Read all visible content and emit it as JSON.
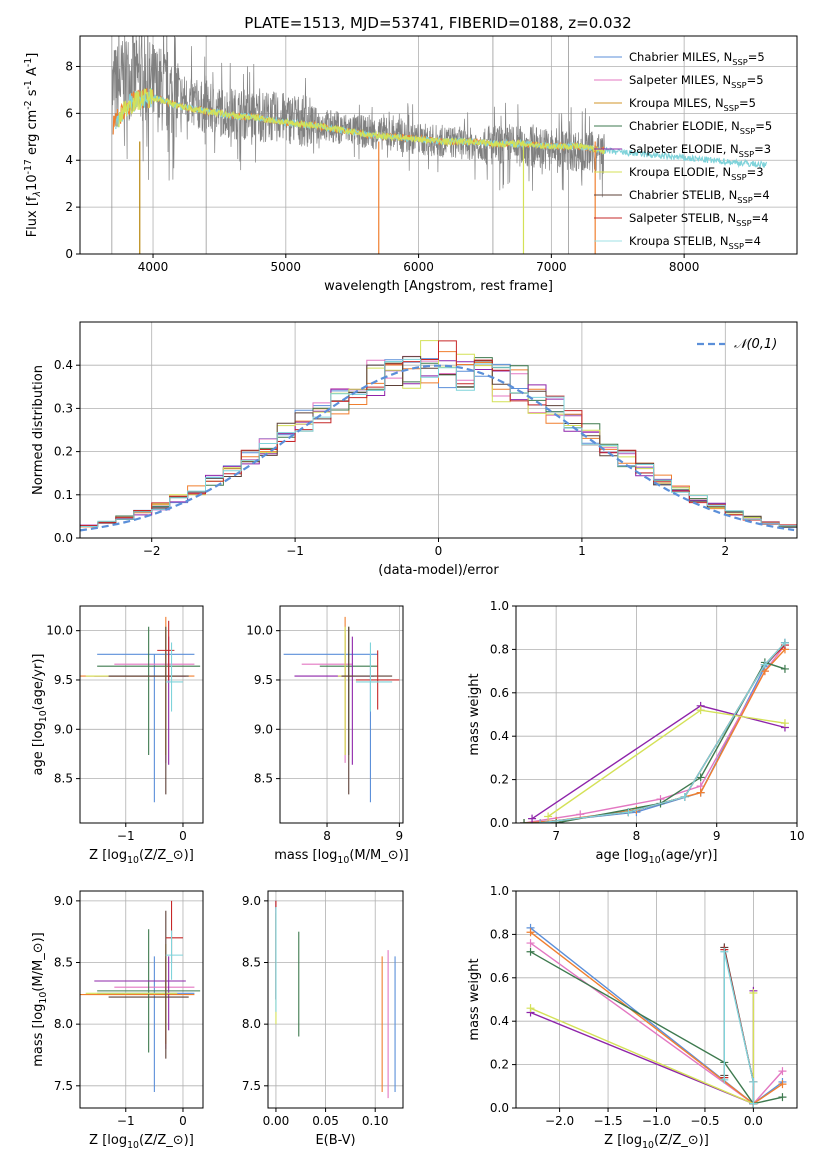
{
  "title": "PLATE=1513, MJD=53741, FIBERID=0188, z=0.032",
  "models": [
    {
      "name": "Chabrier MILES, N$_{SSP}$=5",
      "color": "#4c72b0"
    },
    {
      "name": "Salpeter MILES, N$_{SSP}$=5",
      "color": "#e377c2"
    },
    {
      "name": "Kroupa MILES, N$_{SSP}$=5",
      "color": "#b8860b"
    },
    {
      "name": "Chabrier ELODIE, N$_{SSP}$=5",
      "color": "#2f4f4f"
    },
    {
      "name": "Salpeter ELODIE, N$_{SSP}$=3",
      "color": "#7b1fa2"
    },
    {
      "name": "Kroupa ELODIE, N$_{SSP}$=3",
      "color": "#d4e157"
    },
    {
      "name": "Chabrier STELIB, N$_{SSP}$=4",
      "color": "#3e2723"
    },
    {
      "name": "Salpeter STELIB, N$_{SSP}$=4",
      "color": "#c62828"
    },
    {
      "name": "Kroupa STELIB, N$_{SSP}$=4",
      "color": "#80deea"
    }
  ],
  "chart_data": [
    {
      "id": "spectrum",
      "type": "line",
      "title": "PLATE=1513, MJD=53741, FIBERID=0188, z=0.032",
      "xlabel": "wavelength [Angstrom, rest frame]",
      "ylabel": "Flux [f$_{\\lambda}$10$^{-17}$ erg cm$^{-2}$ s$^{-1}$ A$^{-1}$]",
      "xlim": [
        3450,
        8850
      ],
      "ylim": [
        0,
        9.3
      ],
      "xticks": [
        4000,
        5000,
        6000,
        7000,
        8000
      ],
      "yticks": [
        0,
        2,
        4,
        6,
        8
      ],
      "legend": "upper right",
      "data_x": [
        3700,
        3800,
        3900,
        4000,
        4100,
        4200,
        4400,
        4600,
        4800,
        5000,
        5200,
        5400,
        5600,
        5800,
        6000,
        6200,
        6400,
        6600,
        6800,
        7000,
        7200,
        7400
      ],
      "data_y": [
        7.0,
        7.6,
        7.5,
        7.2,
        6.9,
        6.7,
        6.2,
        6.0,
        5.9,
        5.8,
        5.6,
        5.4,
        5.2,
        5.1,
        4.9,
        4.8,
        4.7,
        4.6,
        4.6,
        4.5,
        4.4,
        4.3
      ],
      "model_x": [
        3700,
        3800,
        3900,
        4000,
        4100,
        4200,
        4400,
        4600,
        4800,
        5000,
        5200,
        5400,
        5600,
        5800,
        6000,
        6200,
        6400,
        6600,
        6800,
        7000,
        7200,
        7400,
        7600,
        7800,
        8000,
        8200,
        8400,
        8600
      ],
      "model_y": [
        5.5,
        6.3,
        6.6,
        6.7,
        6.5,
        6.3,
        6.1,
        5.9,
        5.8,
        5.6,
        5.5,
        5.3,
        5.1,
        5.0,
        4.9,
        4.8,
        4.8,
        4.7,
        4.7,
        4.6,
        4.6,
        4.4,
        4.3,
        4.2,
        4.1,
        4.0,
        3.9,
        3.8
      ]
    },
    {
      "id": "residuals",
      "type": "histogram",
      "xlabel": "(data-model)/error",
      "ylabel": "Normed distribution",
      "xlim": [
        -2.5,
        2.5
      ],
      "ylim": [
        0,
        0.5
      ],
      "xticks": [
        -2,
        -1,
        0,
        1,
        2
      ],
      "yticks": [
        0.0,
        0.1,
        0.2,
        0.3,
        0.4
      ],
      "legend": "upper right",
      "reference_label": "$\\mathcal{N}(0,1)$"
    },
    {
      "id": "age-vs-Z",
      "type": "errorbar",
      "xlabel": "Z [log$_{10}$(Z/Z$_\\odot$)]",
      "ylabel": "age  [log$_{10}$(age/yr)]",
      "xlim": [
        -1.8,
        0.35
      ],
      "ylim": [
        8.05,
        10.25
      ],
      "xticks": [
        -1,
        0
      ],
      "yticks": [
        8.5,
        9.0,
        9.5,
        10.0
      ],
      "points": [
        {
          "x": -0.5,
          "xerr": [
            1.0,
            0.7
          ],
          "y": 9.76,
          "yerr": [
            1.5,
            0
          ]
        },
        {
          "x": -0.3,
          "xerr": [
            0.9,
            0.5
          ],
          "y": 9.66,
          "yerr": [
            1.0,
            0.3
          ]
        },
        {
          "x": -0.3,
          "xerr": [
            1.5,
            0.5
          ],
          "y": 9.54,
          "yerr": [
            0.8,
            0.6
          ]
        },
        {
          "x": -0.6,
          "xerr": [
            0.9,
            0.9
          ],
          "y": 9.64,
          "yerr": [
            0.9,
            0.4
          ]
        },
        {
          "x": -0.25,
          "xerr": [
            1.3,
            0.3
          ],
          "y": 9.54,
          "yerr": [
            0.9,
            0.4
          ]
        },
        {
          "x": -0.3,
          "xerr": [
            1.4,
            0.2
          ],
          "y": 9.54,
          "yerr": [
            0.8,
            0.5
          ]
        },
        {
          "x": -0.3,
          "xerr": [
            1.0,
            0.4
          ],
          "y": 9.54,
          "yerr": [
            1.2,
            0.5
          ]
        },
        {
          "x": -0.25,
          "xerr": [
            0.2,
            0.1
          ],
          "y": 9.8,
          "yerr": [
            0.3,
            0.3
          ]
        },
        {
          "x": -0.2,
          "xerr": [
            0.1,
            0.2
          ],
          "y": 9.48,
          "yerr": [
            0.3,
            0.4
          ]
        }
      ]
    },
    {
      "id": "age-vs-mass",
      "type": "errorbar",
      "xlabel": "mass [log$_{10}$(M/M$_\\odot$)]",
      "ylabel": "",
      "xlim": [
        7.35,
        9.05
      ],
      "ylim": [
        8.05,
        10.25
      ],
      "xticks": [
        8,
        9
      ],
      "yticks": [
        8.5,
        9.0,
        9.5,
        10.0
      ],
      "points": [
        {
          "x": 8.6,
          "xerr": [
            1.2,
            0.1
          ],
          "y": 9.76,
          "yerr": [
            1.5,
            0
          ]
        },
        {
          "x": 8.25,
          "xerr": [
            0.6,
            0.1
          ],
          "y": 9.66,
          "yerr": [
            1.0,
            0.3
          ]
        },
        {
          "x": 8.25,
          "xerr": [
            0.1,
            0.1
          ],
          "y": 9.54,
          "yerr": [
            0.8,
            0.6
          ]
        },
        {
          "x": 8.3,
          "xerr": [
            0.4,
            0.4
          ],
          "y": 9.64,
          "yerr": [
            0.9,
            0.4
          ]
        },
        {
          "x": 8.35,
          "xerr": [
            0.8,
            0.3
          ],
          "y": 9.54,
          "yerr": [
            0.9,
            0.4
          ]
        },
        {
          "x": 8.25,
          "xerr": [
            0.1,
            0.1
          ],
          "y": 9.54,
          "yerr": [
            0.8,
            0.5
          ]
        },
        {
          "x": 8.3,
          "xerr": [
            0.1,
            0.6
          ],
          "y": 9.54,
          "yerr": [
            1.2,
            0.5
          ]
        },
        {
          "x": 8.7,
          "xerr": [
            0.3,
            0.3
          ],
          "y": 9.5,
          "yerr": [
            0.3,
            0.3
          ]
        },
        {
          "x": 8.6,
          "xerr": [
            0.2,
            0.3
          ],
          "y": 9.48,
          "yerr": [
            0.3,
            0.4
          ]
        }
      ]
    },
    {
      "id": "weight-vs-age",
      "type": "line",
      "xlabel": "age  [log$_{10}$(age/yr)]",
      "ylabel": "mass weight",
      "xlim": [
        6.5,
        10.0
      ],
      "ylim": [
        0.0,
        1.0
      ],
      "xticks": [
        7,
        8,
        9,
        10
      ],
      "yticks": [
        0.0,
        0.2,
        0.4,
        0.6,
        0.8,
        1.0
      ],
      "series": [
        {
          "x": [
            6.6,
            7.0,
            8.0,
            8.8,
            9.6,
            9.85
          ],
          "y": [
            0.0,
            0.01,
            0.05,
            0.14,
            0.72,
            0.83
          ]
        },
        {
          "x": [
            6.6,
            7.3,
            8.3,
            8.8,
            9.6,
            9.85
          ],
          "y": [
            0.0,
            0.04,
            0.11,
            0.17,
            0.7,
            0.82
          ]
        },
        {
          "x": [
            6.6,
            7.0,
            8.0,
            8.8,
            9.6,
            9.85
          ],
          "y": [
            0.0,
            0.01,
            0.06,
            0.14,
            0.7,
            0.8
          ]
        },
        {
          "x": [
            6.6,
            7.0,
            8.3,
            8.8,
            9.6,
            9.85
          ],
          "y": [
            0.0,
            0.0,
            0.09,
            0.21,
            0.74,
            0.71
          ]
        },
        {
          "x": [
            6.7,
            8.8,
            9.85
          ],
          "y": [
            0.02,
            0.54,
            0.44
          ]
        },
        {
          "x": [
            6.9,
            8.8,
            9.85
          ],
          "y": [
            0.03,
            0.52,
            0.46
          ]
        },
        {
          "x": [
            6.8,
            7.9,
            8.6,
            9.6,
            9.85
          ],
          "y": [
            0.0,
            0.05,
            0.12,
            0.73,
            0.83
          ]
        },
        {
          "x": [
            6.8,
            7.9,
            8.6,
            9.6,
            9.85
          ],
          "y": [
            0.0,
            0.05,
            0.12,
            0.73,
            0.82
          ]
        },
        {
          "x": [
            6.8,
            7.9,
            8.6,
            9.6,
            9.85
          ],
          "y": [
            0.0,
            0.05,
            0.12,
            0.73,
            0.83
          ]
        }
      ]
    },
    {
      "id": "mass-vs-Z",
      "type": "errorbar",
      "xlabel": "Z [log$_{10}$(Z/Z$_\\odot$)]",
      "ylabel": "mass [log$_{10}$(M/M$_\\odot$)]",
      "xlim": [
        -1.8,
        0.35
      ],
      "ylim": [
        7.32,
        9.08
      ],
      "xticks": [
        -1,
        0
      ],
      "yticks": [
        7.5,
        8.0,
        8.5,
        9.0
      ],
      "points": [
        {
          "x": -0.5,
          "xerr": [
            1.0,
            0.7
          ],
          "y": 8.25,
          "yerr": [
            0.8,
            0.3
          ]
        },
        {
          "x": -0.3,
          "xerr": [
            0.9,
            0.5
          ],
          "y": 8.3,
          "yerr": [
            0.5,
            0.3
          ]
        },
        {
          "x": -0.3,
          "xerr": [
            1.5,
            0.5
          ],
          "y": 8.24,
          "yerr": [
            0.4,
            0.3
          ]
        },
        {
          "x": -0.6,
          "xerr": [
            0.9,
            0.9
          ],
          "y": 8.27,
          "yerr": [
            0.5,
            0.5
          ]
        },
        {
          "x": -0.25,
          "xerr": [
            1.3,
            0.3
          ],
          "y": 8.35,
          "yerr": [
            0.4,
            0.2
          ]
        },
        {
          "x": -0.3,
          "xerr": [
            1.4,
            0.2
          ],
          "y": 8.25,
          "yerr": [
            0.3,
            0.4
          ]
        },
        {
          "x": -0.3,
          "xerr": [
            1.0,
            0.4
          ],
          "y": 8.22,
          "yerr": [
            0.5,
            0.7
          ]
        },
        {
          "x": -0.2,
          "xerr": [
            0.1,
            0.2
          ],
          "y": 8.7,
          "yerr": [
            0.2,
            0.3
          ]
        },
        {
          "x": -0.2,
          "xerr": [
            0.1,
            0.2
          ],
          "y": 8.56,
          "yerr": [
            0.2,
            0.2
          ]
        }
      ]
    },
    {
      "id": "mass-vs-EBV",
      "type": "errorbar",
      "xlabel": "E(B-V)",
      "ylabel": "",
      "xlim": [
        -0.008,
        0.128
      ],
      "ylim": [
        7.32,
        9.08
      ],
      "xticks": [
        0.0,
        0.05,
        0.1
      ],
      "yticks": [
        7.5,
        8.0,
        8.5,
        9.0
      ],
      "points": [
        {
          "x": 0.12,
          "y": 8.0,
          "yerr": [
            0.55,
            0.55
          ]
        },
        {
          "x": 0.113,
          "y": 8.0,
          "yerr": [
            0.6,
            0.6
          ]
        },
        {
          "x": 0.107,
          "y": 8.0,
          "yerr": [
            0.55,
            0.55
          ]
        },
        {
          "x": 0.023,
          "y": 8.3,
          "yerr": [
            0.4,
            0.45
          ]
        },
        {
          "x": 0.0,
          "y": 8.5,
          "yerr": [
            0.3,
            0.5
          ]
        },
        {
          "x": 0.0,
          "y": 8.4,
          "yerr": [
            0.4,
            0.5
          ]
        },
        {
          "x": 0.0,
          "y": 8.6,
          "yerr": [
            0.4,
            0.4
          ]
        },
        {
          "x": 0.0,
          "y": 8.96,
          "yerr": [
            0.02,
            0.04
          ]
        },
        {
          "x": 0.0,
          "y": 8.5,
          "yerr": [
            0.4,
            0.45
          ]
        }
      ]
    },
    {
      "id": "weight-vs-Z",
      "type": "line",
      "xlabel": "Z [log$_{10}$(Z/Z$_\\odot$)]",
      "ylabel": "mass weight",
      "xlim": [
        -2.45,
        0.45
      ],
      "ylim": [
        0.0,
        1.0
      ],
      "xticks": [
        -2.0,
        -1.5,
        -1.0,
        -0.5,
        0.0
      ],
      "yticks": [
        0.0,
        0.2,
        0.4,
        0.6,
        0.8,
        1.0
      ],
      "series": [
        {
          "x": [
            -2.3,
            0.0,
            0.3
          ],
          "y": [
            0.83,
            0.02,
            0.12
          ]
        },
        {
          "x": [
            -2.3,
            0.0,
            0.3
          ],
          "y": [
            0.76,
            0.02,
            0.17
          ]
        },
        {
          "x": [
            -2.3,
            0.0,
            0.3
          ],
          "y": [
            0.81,
            0.02,
            0.11
          ]
        },
        {
          "x": [
            -2.3,
            -0.3,
            0.0,
            0.3
          ],
          "y": [
            0.72,
            0.21,
            0.02,
            0.05
          ]
        },
        {
          "x": [
            -2.3,
            0.0,
            0.0
          ],
          "y": [
            0.44,
            0.02,
            0.54
          ]
        },
        {
          "x": [
            -2.3,
            0.0,
            0.0
          ],
          "y": [
            0.46,
            0.02,
            0.53
          ]
        },
        {
          "x": [
            -0.3,
            -0.3,
            0.0,
            0.0
          ],
          "y": [
            0.15,
            0.74,
            0.12,
            0.02
          ]
        },
        {
          "x": [
            -0.3,
            -0.3,
            0.0,
            0.0
          ],
          "y": [
            0.14,
            0.73,
            0.12,
            0.02
          ]
        },
        {
          "x": [
            -0.3,
            -0.3,
            0.0,
            0.0
          ],
          "y": [
            0.13,
            0.72,
            0.12,
            0.02
          ]
        }
      ]
    }
  ]
}
